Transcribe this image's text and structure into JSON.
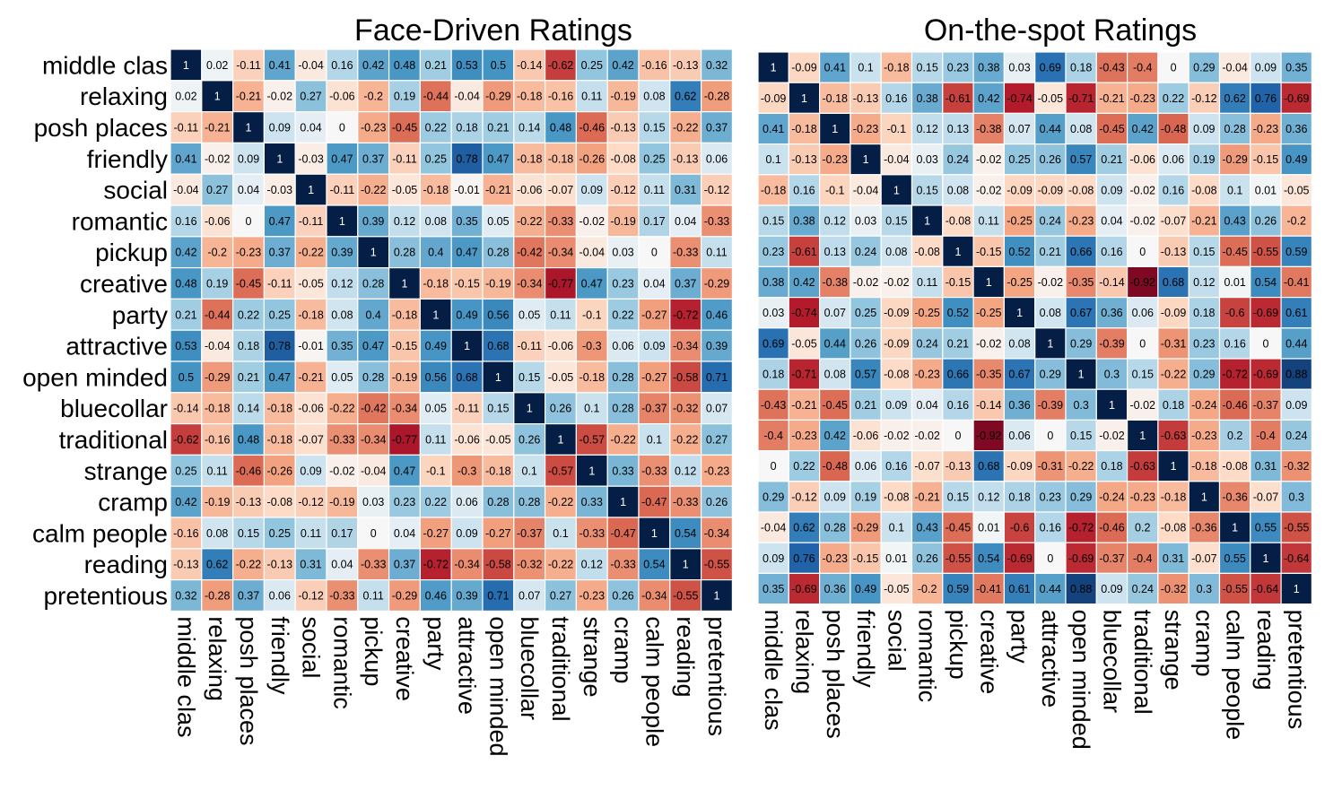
{
  "chart_data": [
    {
      "type": "heatmap",
      "title": "Face-Driven Ratings",
      "labels": [
        "middle clas",
        "relaxing",
        "posh places",
        "friendly",
        "social",
        "romantic",
        "pickup",
        "creative",
        "party",
        "attractive",
        "open minded",
        "bluecollar",
        "traditional",
        "strange",
        "cramp",
        "calm people",
        "reading",
        "pretentious"
      ],
      "value_range": [
        -1,
        1
      ],
      "colormap": "red-white-blue (negative red, positive blue, 1 = dark navy)",
      "matrix": [
        [
          1,
          0.02,
          -0.11,
          0.41,
          -0.04,
          0.16,
          0.42,
          0.48,
          0.21,
          0.53,
          0.5,
          -0.14,
          -0.62,
          0.25,
          0.42,
          -0.16,
          -0.13,
          0.32
        ],
        [
          0.02,
          1,
          -0.21,
          -0.02,
          0.27,
          -0.06,
          -0.2,
          0.19,
          -0.44,
          -0.04,
          -0.29,
          -0.18,
          -0.16,
          0.11,
          -0.19,
          0.08,
          0.62,
          -0.28
        ],
        [
          -0.11,
          -0.21,
          1,
          0.09,
          0.04,
          0,
          -0.23,
          -0.45,
          0.22,
          0.18,
          0.21,
          0.14,
          0.48,
          -0.46,
          -0.13,
          0.15,
          -0.22,
          0.37
        ],
        [
          0.41,
          -0.02,
          0.09,
          1,
          -0.03,
          0.47,
          0.37,
          -0.11,
          0.25,
          0.78,
          0.47,
          -0.18,
          -0.18,
          -0.26,
          -0.08,
          0.25,
          -0.13,
          0.06
        ],
        [
          -0.04,
          0.27,
          0.04,
          -0.03,
          1,
          -0.11,
          -0.22,
          -0.05,
          -0.18,
          -0.01,
          -0.21,
          -0.06,
          -0.07,
          0.09,
          -0.12,
          0.11,
          0.31,
          -0.12
        ],
        [
          0.16,
          -0.06,
          0,
          0.47,
          -0.11,
          1,
          0.39,
          0.12,
          0.08,
          0.35,
          0.05,
          -0.22,
          -0.33,
          -0.02,
          -0.19,
          0.17,
          0.04,
          -0.33
        ],
        [
          0.42,
          -0.2,
          -0.23,
          0.37,
          -0.22,
          0.39,
          1,
          0.28,
          0.4,
          0.47,
          0.28,
          -0.42,
          -0.34,
          -0.04,
          0.03,
          0,
          -0.33,
          0.11
        ],
        [
          0.48,
          0.19,
          -0.45,
          -0.11,
          -0.05,
          0.12,
          0.28,
          1,
          -0.18,
          -0.15,
          -0.19,
          -0.34,
          -0.77,
          0.47,
          0.23,
          0.04,
          0.37,
          -0.29
        ],
        [
          0.21,
          -0.44,
          0.22,
          0.25,
          -0.18,
          0.08,
          0.4,
          -0.18,
          1,
          0.49,
          0.56,
          0.05,
          0.11,
          -0.1,
          0.22,
          -0.27,
          -0.72,
          0.46
        ],
        [
          0.53,
          -0.04,
          0.18,
          0.78,
          -0.01,
          0.35,
          0.47,
          -0.15,
          0.49,
          1,
          0.68,
          -0.11,
          -0.06,
          -0.3,
          0.06,
          0.09,
          -0.34,
          0.39
        ],
        [
          0.5,
          -0.29,
          0.21,
          0.47,
          -0.21,
          0.05,
          0.28,
          -0.19,
          0.56,
          0.68,
          1,
          0.15,
          -0.05,
          -0.18,
          0.28,
          -0.27,
          -0.58,
          0.71
        ],
        [
          -0.14,
          -0.18,
          0.14,
          -0.18,
          -0.06,
          -0.22,
          -0.42,
          -0.34,
          0.05,
          -0.11,
          0.15,
          1,
          0.26,
          0.1,
          0.28,
          -0.37,
          -0.32,
          0.07
        ],
        [
          -0.62,
          -0.16,
          0.48,
          -0.18,
          -0.07,
          -0.33,
          -0.34,
          -0.77,
          0.11,
          -0.06,
          -0.05,
          0.26,
          1,
          -0.57,
          -0.22,
          0.1,
          -0.22,
          0.27
        ],
        [
          0.25,
          0.11,
          -0.46,
          -0.26,
          0.09,
          -0.02,
          -0.04,
          0.47,
          -0.1,
          -0.3,
          -0.18,
          0.1,
          -0.57,
          1,
          0.33,
          -0.33,
          0.12,
          -0.23
        ],
        [
          0.42,
          -0.19,
          -0.13,
          -0.08,
          -0.12,
          -0.19,
          0.03,
          0.23,
          0.22,
          0.06,
          0.28,
          0.28,
          -0.22,
          0.33,
          1,
          -0.47,
          -0.33,
          0.26
        ],
        [
          -0.16,
          0.08,
          0.15,
          0.25,
          0.11,
          0.17,
          0,
          0.04,
          -0.27,
          0.09,
          -0.27,
          -0.37,
          0.1,
          -0.33,
          -0.47,
          1,
          0.54,
          -0.34
        ],
        [
          -0.13,
          0.62,
          -0.22,
          -0.13,
          0.31,
          0.04,
          -0.33,
          0.37,
          -0.72,
          -0.34,
          -0.58,
          -0.32,
          -0.22,
          0.12,
          -0.33,
          0.54,
          1,
          -0.55
        ],
        [
          0.32,
          -0.28,
          0.37,
          0.06,
          -0.12,
          -0.33,
          0.11,
          -0.29,
          0.46,
          0.39,
          0.71,
          0.07,
          0.27,
          -0.23,
          0.26,
          -0.34,
          -0.55,
          1
        ]
      ]
    },
    {
      "type": "heatmap",
      "title": "On-the-spot Ratings",
      "labels": [
        "middle clas",
        "relaxing",
        "posh places",
        "friendly",
        "social",
        "romantic",
        "pickup",
        "creative",
        "party",
        "attractive",
        "open minded",
        "bluecollar",
        "traditional",
        "strange",
        "cramp",
        "calm people",
        "reading",
        "pretentious"
      ],
      "value_range": [
        -1,
        1
      ],
      "colormap": "red-white-blue (negative red, positive blue, 1 = dark navy)",
      "matrix": [
        [
          1,
          -0.09,
          0.41,
          0.1,
          -0.18,
          0.15,
          0.23,
          0.38,
          0.03,
          0.69,
          0.18,
          -0.43,
          -0.4,
          0,
          0.29,
          -0.04,
          0.09,
          0.35
        ],
        [
          -0.09,
          1,
          -0.18,
          -0.13,
          0.16,
          0.38,
          -0.61,
          0.42,
          -0.74,
          -0.05,
          -0.71,
          -0.21,
          -0.23,
          0.22,
          -0.12,
          0.62,
          0.76,
          -0.69
        ],
        [
          0.41,
          -0.18,
          1,
          -0.23,
          -0.1,
          0.12,
          0.13,
          -0.38,
          0.07,
          0.44,
          0.08,
          -0.45,
          0.42,
          -0.48,
          0.09,
          0.28,
          -0.23,
          0.36
        ],
        [
          0.1,
          -0.13,
          -0.23,
          1,
          -0.04,
          0.03,
          0.24,
          -0.02,
          0.25,
          0.26,
          0.57,
          0.21,
          -0.06,
          0.06,
          0.19,
          -0.29,
          -0.15,
          0.49
        ],
        [
          -0.18,
          0.16,
          -0.1,
          -0.04,
          1,
          0.15,
          0.08,
          -0.02,
          -0.09,
          -0.09,
          -0.08,
          0.09,
          -0.02,
          0.16,
          -0.08,
          0.1,
          0.01,
          -0.05
        ],
        [
          0.15,
          0.38,
          0.12,
          0.03,
          0.15,
          1,
          -0.08,
          0.11,
          -0.25,
          0.24,
          -0.23,
          0.04,
          -0.02,
          -0.07,
          -0.21,
          0.43,
          0.26,
          -0.2
        ],
        [
          0.23,
          -0.61,
          0.13,
          0.24,
          0.08,
          -0.08,
          1,
          -0.15,
          0.52,
          0.21,
          0.66,
          0.16,
          0,
          -0.13,
          0.15,
          -0.45,
          -0.55,
          0.59
        ],
        [
          0.38,
          0.42,
          -0.38,
          -0.02,
          -0.02,
          0.11,
          -0.15,
          1,
          -0.25,
          -0.02,
          -0.35,
          -0.14,
          -0.92,
          0.68,
          0.12,
          0.01,
          0.54,
          -0.41
        ],
        [
          0.03,
          -0.74,
          0.07,
          0.25,
          -0.09,
          -0.25,
          0.52,
          -0.25,
          1,
          0.08,
          0.67,
          0.36,
          0.06,
          -0.09,
          0.18,
          -0.6,
          -0.69,
          0.61
        ],
        [
          0.69,
          -0.05,
          0.44,
          0.26,
          -0.09,
          0.24,
          0.21,
          -0.02,
          0.08,
          1,
          0.29,
          -0.39,
          0,
          -0.31,
          0.23,
          0.16,
          0,
          0.44
        ],
        [
          0.18,
          -0.71,
          0.08,
          0.57,
          -0.08,
          -0.23,
          0.66,
          -0.35,
          0.67,
          0.29,
          1,
          0.3,
          0.15,
          -0.22,
          0.29,
          -0.72,
          -0.69,
          0.88
        ],
        [
          -0.43,
          -0.21,
          -0.45,
          0.21,
          0.09,
          0.04,
          0.16,
          -0.14,
          0.36,
          -0.39,
          0.3,
          1,
          -0.02,
          0.18,
          -0.24,
          -0.46,
          -0.37,
          0.09
        ],
        [
          -0.4,
          -0.23,
          0.42,
          -0.06,
          -0.02,
          -0.02,
          0,
          -0.92,
          0.06,
          0,
          0.15,
          -0.02,
          1,
          -0.63,
          -0.23,
          0.2,
          -0.4,
          0.24
        ],
        [
          0,
          0.22,
          -0.48,
          0.06,
          0.16,
          -0.07,
          -0.13,
          0.68,
          -0.09,
          -0.31,
          -0.22,
          0.18,
          -0.63,
          1,
          -0.18,
          -0.08,
          0.31,
          -0.32
        ],
        [
          0.29,
          -0.12,
          0.09,
          0.19,
          -0.08,
          -0.21,
          0.15,
          0.12,
          0.18,
          0.23,
          0.29,
          -0.24,
          -0.23,
          -0.18,
          1,
          -0.36,
          -0.07,
          0.3
        ],
        [
          -0.04,
          0.62,
          0.28,
          -0.29,
          0.1,
          0.43,
          -0.45,
          0.01,
          -0.6,
          0.16,
          -0.72,
          -0.46,
          0.2,
          -0.08,
          -0.36,
          1,
          0.55,
          -0.55
        ],
        [
          0.09,
          0.76,
          -0.23,
          -0.15,
          0.01,
          0.26,
          -0.55,
          0.54,
          -0.69,
          0,
          -0.69,
          -0.37,
          -0.4,
          0.31,
          -0.07,
          0.55,
          1,
          -0.64
        ],
        [
          0.35,
          -0.69,
          0.36,
          0.49,
          -0.05,
          -0.2,
          0.59,
          -0.41,
          0.61,
          0.44,
          0.88,
          0.09,
          0.24,
          -0.32,
          0.3,
          -0.55,
          -0.64,
          1
        ]
      ]
    }
  ]
}
